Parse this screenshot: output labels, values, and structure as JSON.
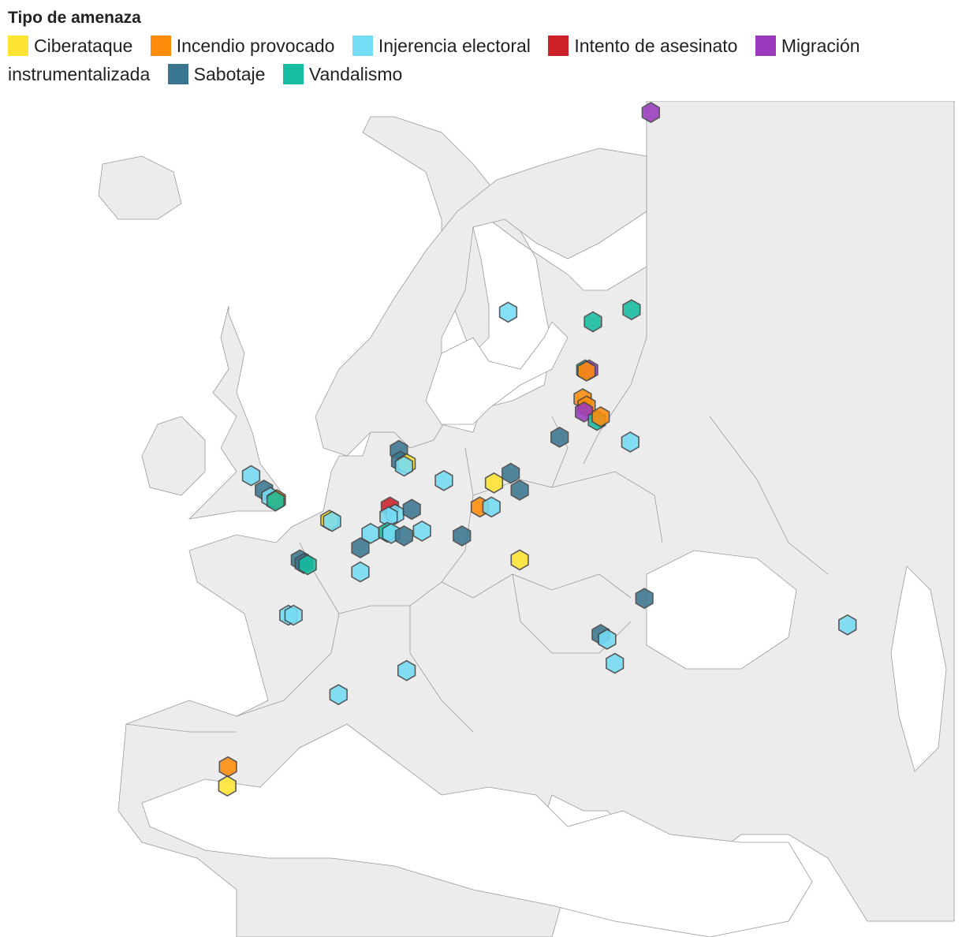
{
  "legend": {
    "title": "Tipo de amenaza",
    "items": [
      {
        "key": "ciberataque",
        "label": "Ciberataque",
        "color": "#ffe433"
      },
      {
        "key": "incendio",
        "label": "Incendio provocado",
        "color": "#ff8c0a"
      },
      {
        "key": "injerencia",
        "label": "Injerencia electoral",
        "color": "#74dcf5"
      },
      {
        "key": "asesinato",
        "label": "Intento de asesinato",
        "color": "#cc2128"
      },
      {
        "key": "migracion",
        "label": "Migración instrumentalizada",
        "color": "#9a3bbd"
      },
      {
        "key": "sabotaje",
        "label": "Sabotaje",
        "color": "#3a7690"
      },
      {
        "key": "vandalismo",
        "label": "Vandalismo",
        "color": "#16bda0"
      }
    ]
  },
  "map": {
    "region": "Europa",
    "marker_shape": "hexagon-icon",
    "incidents": [
      {
        "type": "migracion",
        "lon": 29.2,
        "lat": 67.6
      },
      {
        "type": "injerencia",
        "lon": 18.1,
        "lat": 59.3
      },
      {
        "type": "vandalismo",
        "lon": 27.7,
        "lat": 59.4
      },
      {
        "type": "vandalismo",
        "lon": 24.7,
        "lat": 58.9
      },
      {
        "type": "vandalismo",
        "lon": 24.1,
        "lat": 56.9
      },
      {
        "type": "migracion",
        "lon": 24.4,
        "lat": 56.9
      },
      {
        "type": "incendio",
        "lon": 24.2,
        "lat": 56.85
      },
      {
        "type": "incendio",
        "lon": 23.9,
        "lat": 55.7
      },
      {
        "type": "incendio",
        "lon": 24.2,
        "lat": 55.4
      },
      {
        "type": "migracion",
        "lon": 24.0,
        "lat": 55.15
      },
      {
        "type": "vandalismo",
        "lon": 25.0,
        "lat": 54.8
      },
      {
        "type": "incendio",
        "lon": 25.3,
        "lat": 54.95
      },
      {
        "type": "injerencia",
        "lon": 27.6,
        "lat": 53.9
      },
      {
        "type": "sabotaje",
        "lon": 22.1,
        "lat": 54.1
      },
      {
        "type": "injerencia",
        "lon": -1.9,
        "lat": 52.5
      },
      {
        "type": "sabotaje",
        "lon": -0.9,
        "lat": 51.9
      },
      {
        "type": "injerencia",
        "lon": -0.4,
        "lat": 51.6
      },
      {
        "type": "incendio",
        "lon": 0.1,
        "lat": 51.5
      },
      {
        "type": "vandalismo",
        "lon": 0.0,
        "lat": 51.45
      },
      {
        "type": "sabotaje",
        "lon": 9.6,
        "lat": 53.55
      },
      {
        "type": "sabotaje",
        "lon": 9.7,
        "lat": 53.1
      },
      {
        "type": "ciberataque",
        "lon": 10.2,
        "lat": 53.0
      },
      {
        "type": "injerencia",
        "lon": 10.0,
        "lat": 52.9
      },
      {
        "type": "injerencia",
        "lon": 13.1,
        "lat": 52.3
      },
      {
        "type": "ciberataque",
        "lon": 17.0,
        "lat": 52.2
      },
      {
        "type": "sabotaje",
        "lon": 18.3,
        "lat": 52.6
      },
      {
        "type": "sabotaje",
        "lon": 19.0,
        "lat": 51.9
      },
      {
        "type": "incendio",
        "lon": 15.9,
        "lat": 51.2
      },
      {
        "type": "injerencia",
        "lon": 16.8,
        "lat": 51.2
      },
      {
        "type": "ciberataque",
        "lon": 4.2,
        "lat": 50.65
      },
      {
        "type": "injerencia",
        "lon": 4.4,
        "lat": 50.6
      },
      {
        "type": "asesinato",
        "lon": 8.9,
        "lat": 51.2
      },
      {
        "type": "injerencia",
        "lon": 9.3,
        "lat": 50.9
      },
      {
        "type": "injerencia",
        "lon": 8.8,
        "lat": 50.8
      },
      {
        "type": "sabotaje",
        "lon": 10.6,
        "lat": 51.1
      },
      {
        "type": "injerencia",
        "lon": 7.4,
        "lat": 50.1
      },
      {
        "type": "vandalismo",
        "lon": 8.7,
        "lat": 50.15
      },
      {
        "type": "injerencia",
        "lon": 9.0,
        "lat": 50.1
      },
      {
        "type": "sabotaje",
        "lon": 10.0,
        "lat": 50.0
      },
      {
        "type": "injerencia",
        "lon": 11.4,
        "lat": 50.2
      },
      {
        "type": "sabotaje",
        "lon": 14.5,
        "lat": 50.0
      },
      {
        "type": "sabotaje",
        "lon": 6.6,
        "lat": 49.5
      },
      {
        "type": "injerencia",
        "lon": 6.6,
        "lat": 48.5
      },
      {
        "type": "sabotaje",
        "lon": 1.9,
        "lat": 49.0
      },
      {
        "type": "sabotaje",
        "lon": 2.2,
        "lat": 48.85
      },
      {
        "type": "vandalismo",
        "lon": 2.5,
        "lat": 48.8
      },
      {
        "type": "ciberataque",
        "lon": 19.0,
        "lat": 49.0
      },
      {
        "type": "injerencia",
        "lon": 1.0,
        "lat": 46.7
      },
      {
        "type": "injerencia",
        "lon": 1.4,
        "lat": 46.7
      },
      {
        "type": "injerencia",
        "lon": 10.2,
        "lat": 44.4
      },
      {
        "type": "injerencia",
        "lon": 4.9,
        "lat": 43.4
      },
      {
        "type": "sabotaje",
        "lon": 28.7,
        "lat": 47.4
      },
      {
        "type": "sabotaje",
        "lon": 25.3,
        "lat": 45.9
      },
      {
        "type": "injerencia",
        "lon": 25.8,
        "lat": 45.7
      },
      {
        "type": "injerencia",
        "lon": 26.4,
        "lat": 44.7
      },
      {
        "type": "injerencia",
        "lon": 44.5,
        "lat": 46.3
      },
      {
        "type": "incendio",
        "lon": -3.7,
        "lat": 40.4
      },
      {
        "type": "ciberataque",
        "lon": -3.75,
        "lat": 39.6
      }
    ]
  }
}
